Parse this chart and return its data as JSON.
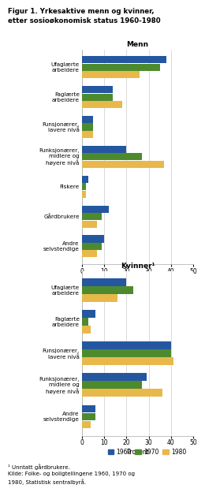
{
  "title_line1": "Figur 1. Yrkesaktive menn og kvinner,",
  "title_line2": "etter sosioøkonomisk status 1960-1980",
  "men_title": "Menn",
  "women_title": "Kvinner¹",
  "xlabel": "Prosent",
  "colors": [
    "#2457a0",
    "#4d8a2e",
    "#e8b84b"
  ],
  "legend_labels": [
    "1960",
    "1970",
    "1980"
  ],
  "men_categories": [
    "Ufaglærte\narbeidere",
    "Faglærte\narbeidere",
    "Funsjonærer,\nlavere nivå",
    "Funksjonærer,\nmidlere og\nhøyere nivå",
    "Fiskere",
    "Gårdbrukere",
    "Andre\nselvstendige"
  ],
  "men_values_1960": [
    38,
    14,
    5,
    20,
    3,
    12,
    10
  ],
  "men_values_1970": [
    35,
    14,
    5,
    27,
    2,
    9,
    9
  ],
  "men_values_1980": [
    26,
    18,
    5,
    37,
    2,
    7,
    7
  ],
  "women_categories": [
    "Ufaglærte\narbeidere",
    "Faglærte\narbeidere",
    "Funsjonærer,\nlavere nivå",
    "Funksjonærer,\nmidlere og\nhøyere nivå",
    "Andre\nselvstendige"
  ],
  "women_values_1960": [
    20,
    6,
    40,
    29,
    6
  ],
  "women_values_1970": [
    23,
    3,
    40,
    27,
    6
  ],
  "women_values_1980": [
    16,
    4,
    41,
    36,
    4
  ],
  "xlim": [
    0,
    50
  ],
  "xticks": [
    0,
    10,
    20,
    30,
    40,
    50
  ],
  "footnote": "¹ Unntatt gårdbrukere.\nKilde: Folke- og boligtellingene 1960, 1970 og\n1980, Statistisk sentralbyrå.",
  "background_color": "#ffffff",
  "grid_color": "#cccccc"
}
